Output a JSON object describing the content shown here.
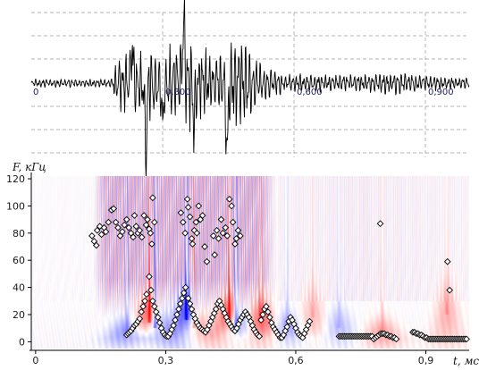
{
  "chart_data": [
    {
      "type": "line",
      "panel": "waveform",
      "title": "",
      "xlabel": "",
      "ylabel": "",
      "xlim": [
        0,
        1.0
      ],
      "tick_values": [
        0,
        0.3,
        0.6,
        0.9
      ],
      "tick_labels": [
        "0",
        "0,300",
        "0,600",
        "0,900"
      ],
      "grid": "horizontal dashed",
      "series": [
        {
          "color": "#000000",
          "envelope": [
            {
              "t": 0.0,
              "a": 0.06
            },
            {
              "t": 0.18,
              "a": 0.06
            },
            {
              "t": 0.2,
              "a": 0.38
            },
            {
              "t": 0.25,
              "a": 0.6
            },
            {
              "t": 0.3,
              "a": 0.45
            },
            {
              "t": 0.36,
              "a": 0.75
            },
            {
              "t": 0.42,
              "a": 0.4
            },
            {
              "t": 0.47,
              "a": 0.8
            },
            {
              "t": 0.52,
              "a": 0.35
            },
            {
              "t": 0.58,
              "a": 0.14
            },
            {
              "t": 0.72,
              "a": 0.13
            },
            {
              "t": 0.82,
              "a": 0.18
            },
            {
              "t": 0.9,
              "a": 0.12
            },
            {
              "t": 1.0,
              "a": 0.08
            }
          ],
          "spikes": [
            {
              "t": 0.262,
              "a": -1.0
            },
            {
              "t": 0.348,
              "a": 0.75
            },
            {
              "t": 0.447,
              "a": -0.95
            },
            {
              "t": 0.23,
              "a": 0.5
            },
            {
              "t": 0.3,
              "a": -0.55
            },
            {
              "t": 0.372,
              "a": -0.55
            }
          ]
        }
      ]
    },
    {
      "type": "heatmap",
      "panel": "wavelet-spectrogram",
      "title": "",
      "xlabel": "t, мс",
      "ylabel": "F, кГц",
      "xlim": [
        -0.01,
        1.0
      ],
      "ylim": [
        -5,
        122
      ],
      "x_ticks": [
        0,
        0.3,
        0.6,
        0.9
      ],
      "x_tick_labels": [
        "0",
        "0,3",
        "0,6",
        "0,9"
      ],
      "y_ticks": [
        0,
        20,
        40,
        60,
        80,
        100,
        120
      ],
      "colormap": {
        "negative": "#0000ff",
        "zero": "#ffffff",
        "positive": "#ff0000"
      },
      "burst_regions": [
        {
          "t": 0.262,
          "f": 14,
          "sign": 1,
          "strength": 1.0
        },
        {
          "t": 0.275,
          "f": 10,
          "sign": -1,
          "strength": 0.9
        },
        {
          "t": 0.348,
          "f": 16,
          "sign": -1,
          "strength": 0.9
        },
        {
          "t": 0.365,
          "f": 10,
          "sign": 1,
          "strength": 0.7
        },
        {
          "t": 0.447,
          "f": 14,
          "sign": 1,
          "strength": 1.0
        },
        {
          "t": 0.462,
          "f": 10,
          "sign": -1,
          "strength": 0.95
        },
        {
          "t": 0.52,
          "f": 14,
          "sign": 1,
          "strength": 0.6
        },
        {
          "t": 0.21,
          "f": 6,
          "sign": -1,
          "strength": 0.45
        },
        {
          "t": 0.58,
          "f": 8,
          "sign": -1,
          "strength": 0.35
        },
        {
          "t": 0.64,
          "f": 18,
          "sign": 1,
          "strength": 0.25
        },
        {
          "t": 0.7,
          "f": 10,
          "sign": -1,
          "strength": 0.25
        },
        {
          "t": 0.8,
          "f": 6,
          "sign": 1,
          "strength": 0.35
        },
        {
          "t": 0.95,
          "f": 20,
          "sign": 1,
          "strength": 0.3
        }
      ],
      "high_freq_band": {
        "t_start": 0.13,
        "t_end": 0.56,
        "f_min": 40,
        "f_max": 122
      },
      "markers": {
        "style": "white-diamond-black-edge",
        "points": [
          [
            0.13,
            78
          ],
          [
            0.135,
            74
          ],
          [
            0.14,
            71
          ],
          [
            0.142,
            82
          ],
          [
            0.148,
            85
          ],
          [
            0.152,
            79
          ],
          [
            0.158,
            84
          ],
          [
            0.162,
            81
          ],
          [
            0.168,
            88
          ],
          [
            0.175,
            97
          ],
          [
            0.18,
            98
          ],
          [
            0.185,
            88
          ],
          [
            0.19,
            84
          ],
          [
            0.195,
            78
          ],
          [
            0.2,
            81
          ],
          [
            0.205,
            86
          ],
          [
            0.21,
            90
          ],
          [
            0.215,
            84
          ],
          [
            0.22,
            80
          ],
          [
            0.225,
            77
          ],
          [
            0.228,
            93
          ],
          [
            0.232,
            85
          ],
          [
            0.236,
            80
          ],
          [
            0.24,
            82
          ],
          [
            0.245,
            77
          ],
          [
            0.25,
            93
          ],
          [
            0.255,
            86
          ],
          [
            0.258,
            90
          ],
          [
            0.262,
            83
          ],
          [
            0.265,
            80
          ],
          [
            0.268,
            72
          ],
          [
            0.27,
            106
          ],
          [
            0.274,
            88
          ],
          [
            0.335,
            95
          ],
          [
            0.34,
            88
          ],
          [
            0.345,
            80
          ],
          [
            0.35,
            105
          ],
          [
            0.352,
            99
          ],
          [
            0.356,
            92
          ],
          [
            0.36,
            76
          ],
          [
            0.362,
            72
          ],
          [
            0.366,
            82
          ],
          [
            0.37,
            88
          ],
          [
            0.372,
            80
          ],
          [
            0.376,
            100
          ],
          [
            0.38,
            90
          ],
          [
            0.385,
            93
          ],
          [
            0.39,
            70
          ],
          [
            0.395,
            59
          ],
          [
            0.41,
            78
          ],
          [
            0.413,
            64
          ],
          [
            0.418,
            82
          ],
          [
            0.422,
            76
          ],
          [
            0.428,
            90
          ],
          [
            0.432,
            80
          ],
          [
            0.438,
            84
          ],
          [
            0.442,
            78
          ],
          [
            0.447,
            105
          ],
          [
            0.452,
            100
          ],
          [
            0.455,
            88
          ],
          [
            0.46,
            72
          ],
          [
            0.463,
            76
          ],
          [
            0.467,
            82
          ],
          [
            0.472,
            78
          ],
          [
            0.795,
            87
          ],
          [
            0.95,
            59
          ],
          [
            0.955,
            38
          ],
          [
            0.21,
            5
          ],
          [
            0.213,
            6
          ],
          [
            0.216,
            7
          ],
          [
            0.22,
            8
          ],
          [
            0.224,
            10
          ],
          [
            0.228,
            12
          ],
          [
            0.232,
            13
          ],
          [
            0.236,
            15
          ],
          [
            0.24,
            17
          ],
          [
            0.244,
            22
          ],
          [
            0.248,
            26
          ],
          [
            0.252,
            30
          ],
          [
            0.256,
            35
          ],
          [
            0.262,
            48
          ],
          [
            0.266,
            38
          ],
          [
            0.27,
            30
          ],
          [
            0.274,
            26
          ],
          [
            0.278,
            22
          ],
          [
            0.282,
            18
          ],
          [
            0.286,
            14
          ],
          [
            0.29,
            10
          ],
          [
            0.294,
            7
          ],
          [
            0.298,
            5
          ],
          [
            0.302,
            4
          ],
          [
            0.306,
            4
          ],
          [
            0.31,
            6
          ],
          [
            0.314,
            9
          ],
          [
            0.318,
            12
          ],
          [
            0.322,
            16
          ],
          [
            0.326,
            20
          ],
          [
            0.33,
            24
          ],
          [
            0.334,
            28
          ],
          [
            0.338,
            32
          ],
          [
            0.342,
            36
          ],
          [
            0.346,
            40
          ],
          [
            0.352,
            32
          ],
          [
            0.356,
            28
          ],
          [
            0.36,
            24
          ],
          [
            0.364,
            20
          ],
          [
            0.368,
            17
          ],
          [
            0.372,
            14
          ],
          [
            0.376,
            12
          ],
          [
            0.38,
            10
          ],
          [
            0.384,
            9
          ],
          [
            0.388,
            8
          ],
          [
            0.392,
            7
          ],
          [
            0.396,
            9
          ],
          [
            0.4,
            12
          ],
          [
            0.404,
            15
          ],
          [
            0.408,
            18
          ],
          [
            0.412,
            21
          ],
          [
            0.416,
            24
          ],
          [
            0.42,
            28
          ],
          [
            0.424,
            30
          ],
          [
            0.428,
            27
          ],
          [
            0.432,
            24
          ],
          [
            0.436,
            21
          ],
          [
            0.44,
            18
          ],
          [
            0.444,
            15
          ],
          [
            0.448,
            13
          ],
          [
            0.452,
            11
          ],
          [
            0.456,
            9
          ],
          [
            0.46,
            8
          ],
          [
            0.464,
            10
          ],
          [
            0.468,
            13
          ],
          [
            0.472,
            16
          ],
          [
            0.476,
            18
          ],
          [
            0.48,
            20
          ],
          [
            0.484,
            22
          ],
          [
            0.488,
            20
          ],
          [
            0.492,
            18
          ],
          [
            0.496,
            15
          ],
          [
            0.5,
            12
          ],
          [
            0.504,
            9
          ],
          [
            0.508,
            7
          ],
          [
            0.512,
            5
          ],
          [
            0.516,
            4
          ],
          [
            0.52,
            16
          ],
          [
            0.524,
            20
          ],
          [
            0.528,
            24
          ],
          [
            0.532,
            26
          ],
          [
            0.536,
            22
          ],
          [
            0.54,
            18
          ],
          [
            0.544,
            14
          ],
          [
            0.548,
            11
          ],
          [
            0.552,
            9
          ],
          [
            0.556,
            7
          ],
          [
            0.56,
            5
          ],
          [
            0.564,
            3
          ],
          [
            0.568,
            3
          ],
          [
            0.572,
            5
          ],
          [
            0.576,
            8
          ],
          [
            0.58,
            11
          ],
          [
            0.584,
            15
          ],
          [
            0.588,
            18
          ],
          [
            0.592,
            16
          ],
          [
            0.596,
            13
          ],
          [
            0.6,
            10
          ],
          [
            0.604,
            7
          ],
          [
            0.608,
            5
          ],
          [
            0.612,
            4
          ],
          [
            0.616,
            3
          ],
          [
            0.62,
            6
          ],
          [
            0.624,
            9
          ],
          [
            0.628,
            12
          ],
          [
            0.632,
            15
          ],
          [
            0.7,
            4
          ],
          [
            0.704,
            4
          ],
          [
            0.708,
            4
          ],
          [
            0.712,
            4
          ],
          [
            0.716,
            4
          ],
          [
            0.72,
            4
          ],
          [
            0.724,
            4
          ],
          [
            0.728,
            4
          ],
          [
            0.732,
            4
          ],
          [
            0.736,
            4
          ],
          [
            0.74,
            4
          ],
          [
            0.744,
            4
          ],
          [
            0.748,
            4
          ],
          [
            0.752,
            4
          ],
          [
            0.756,
            4
          ],
          [
            0.76,
            4
          ],
          [
            0.764,
            4
          ],
          [
            0.768,
            4
          ],
          [
            0.772,
            4
          ],
          [
            0.776,
            4
          ],
          [
            0.78,
            2
          ],
          [
            0.784,
            3
          ],
          [
            0.788,
            4
          ],
          [
            0.792,
            5
          ],
          [
            0.796,
            6
          ],
          [
            0.8,
            6
          ],
          [
            0.804,
            6
          ],
          [
            0.808,
            5
          ],
          [
            0.812,
            5
          ],
          [
            0.816,
            4
          ],
          [
            0.82,
            4
          ],
          [
            0.824,
            3
          ],
          [
            0.828,
            3
          ],
          [
            0.832,
            2
          ],
          [
            0.87,
            7
          ],
          [
            0.874,
            7
          ],
          [
            0.878,
            6
          ],
          [
            0.882,
            6
          ],
          [
            0.886,
            5
          ],
          [
            0.89,
            5
          ],
          [
            0.894,
            4
          ],
          [
            0.898,
            3
          ],
          [
            0.902,
            3
          ],
          [
            0.906,
            2
          ],
          [
            0.91,
            2
          ],
          [
            0.914,
            2
          ],
          [
            0.918,
            2
          ],
          [
            0.922,
            2
          ],
          [
            0.926,
            2
          ],
          [
            0.93,
            2
          ],
          [
            0.934,
            2
          ],
          [
            0.938,
            2
          ],
          [
            0.942,
            2
          ],
          [
            0.946,
            2
          ],
          [
            0.95,
            2
          ],
          [
            0.954,
            2
          ],
          [
            0.958,
            2
          ],
          [
            0.962,
            2
          ],
          [
            0.966,
            2
          ],
          [
            0.97,
            2
          ],
          [
            0.974,
            2
          ],
          [
            0.978,
            2
          ],
          [
            0.982,
            2
          ],
          [
            0.986,
            2
          ],
          [
            0.99,
            2
          ],
          [
            0.994,
            2
          ]
        ]
      }
    }
  ]
}
